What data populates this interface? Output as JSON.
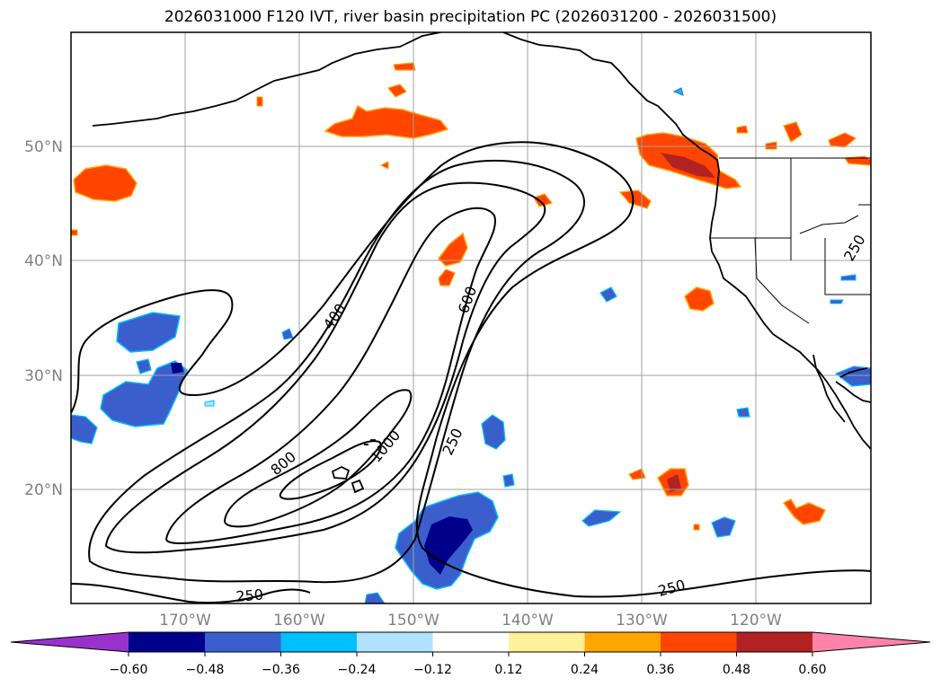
{
  "title": "2026031000 F120 IVT, river basin precipitation PC (2026031200 - 2026031500)",
  "lon_labels": [
    "170°W",
    "160°W",
    "150°W",
    "140°W",
    "130°W",
    "120°W"
  ],
  "lat_labels": [
    "50°N",
    "40°N",
    "30°N",
    "20°N"
  ],
  "contour_labels": [
    "400",
    "600",
    "800",
    "1000",
    "250",
    "250",
    "250",
    "250"
  ],
  "colorbar": {
    "tick_labels": [
      "−0.60",
      "−0.48",
      "−0.36",
      "−0.24",
      "−0.12",
      "0.12",
      "0.24",
      "0.36",
      "0.48",
      "0.60"
    ],
    "colors": [
      "#9932cc",
      "#00008b",
      "#3a5fcd",
      "#00bfff",
      "#b0e2ff",
      "#ffffff",
      "#fff09a",
      "#ffa500",
      "#ff4500",
      "#b22222",
      "#ff82ab"
    ]
  },
  "colors": {
    "coast": "#000000",
    "grid": "#a0a0a0",
    "ivt_contour": "#000000"
  }
}
